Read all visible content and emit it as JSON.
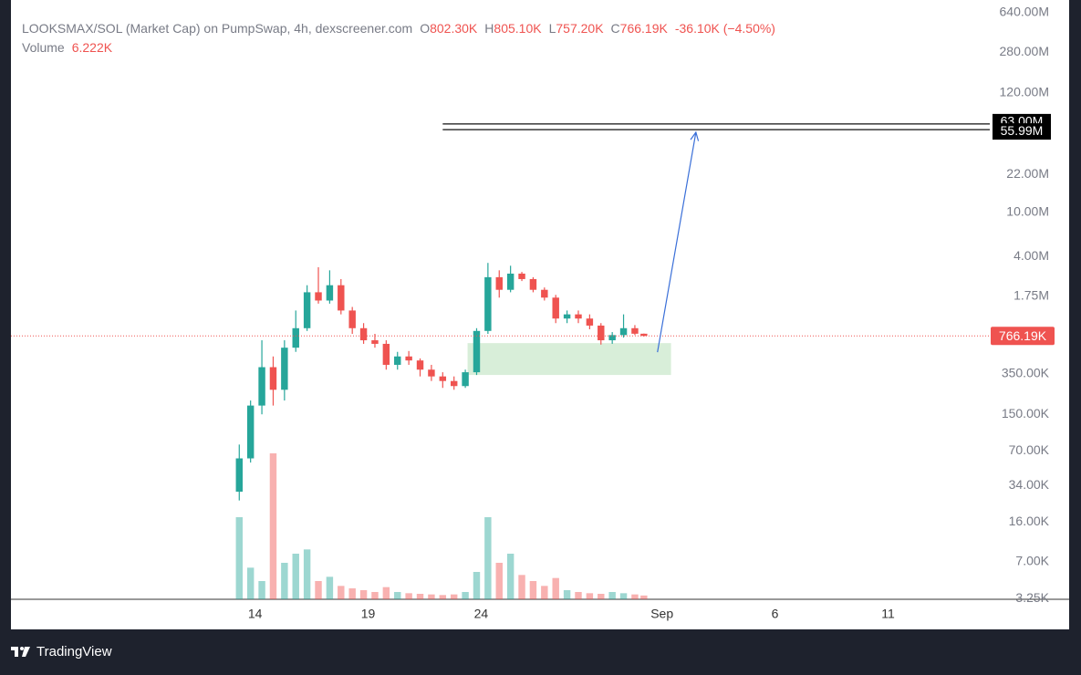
{
  "chart_data": {
    "type": "candlestick",
    "header": {
      "symbol": "LOOKSMAX/SOL (Market Cap) on PumpSwap, 4h, dexscreener.com",
      "o": "O",
      "open": "802.30K",
      "h": "H",
      "high": "805.10K",
      "l": "L",
      "low": "757.20K",
      "c": "C",
      "close": "766.19K",
      "change": "-36.10K (−4.50%)",
      "volume_name": "Volume",
      "volume": "6.222K"
    },
    "x": [
      13.3,
      13.8,
      14.3,
      14.8,
      15.3,
      15.8,
      16.3,
      16.8,
      17.3,
      17.8,
      18.3,
      18.8,
      19.3,
      19.8,
      20.3,
      20.8,
      21.3,
      21.8,
      22.3,
      22.8,
      23.3,
      23.8,
      24.3,
      24.8,
      25.3,
      25.8,
      26.3,
      26.8,
      27.3,
      27.8,
      28.3,
      28.8,
      29.3,
      29.8,
      30.3,
      30.8,
      31.2
    ],
    "open": [
      30000,
      60000,
      180000,
      400000,
      250000,
      600000,
      900000,
      1900000,
      1600000,
      2200000,
      1300000,
      900000,
      700000,
      650000,
      420000,
      500000,
      460000,
      380000,
      330000,
      300000,
      270000,
      360000,
      850000,
      2600000,
      2000000,
      2800000,
      2500000,
      2000000,
      1700000,
      1100000,
      1200000,
      1100000,
      950000,
      700000,
      780000,
      900000,
      802300
    ],
    "high": [
      80000,
      200000,
      700000,
      500000,
      700000,
      1300000,
      2200000,
      3200000,
      3000000,
      2500000,
      1400000,
      1000000,
      800000,
      700000,
      550000,
      560000,
      480000,
      420000,
      360000,
      330000,
      380000,
      900000,
      3500000,
      3000000,
      3300000,
      2900000,
      2600000,
      2100000,
      1800000,
      1300000,
      1300000,
      1200000,
      1000000,
      830000,
      1200000,
      960000,
      805100
    ],
    "low": [
      25000,
      55000,
      150000,
      180000,
      200000,
      550000,
      850000,
      1500000,
      1500000,
      1200000,
      800000,
      650000,
      600000,
      380000,
      380000,
      420000,
      330000,
      300000,
      260000,
      250000,
      260000,
      340000,
      800000,
      1700000,
      1900000,
      2400000,
      1900000,
      1600000,
      1000000,
      1000000,
      1000000,
      880000,
      640000,
      650000,
      740000,
      780000,
      757200
    ],
    "close": [
      60000,
      180000,
      400000,
      250000,
      600000,
      900000,
      1900000,
      1600000,
      2200000,
      1300000,
      900000,
      700000,
      650000,
      420000,
      500000,
      460000,
      380000,
      330000,
      300000,
      270000,
      360000,
      850000,
      2600000,
      2000000,
      2800000,
      2500000,
      2000000,
      1700000,
      1100000,
      1200000,
      1100000,
      950000,
      700000,
      780000,
      900000,
      802300,
      766190
    ],
    "volume": [
      135000,
      52000,
      30000,
      240000,
      60000,
      75000,
      82000,
      30000,
      37000,
      22000,
      18000,
      15000,
      12000,
      20000,
      12000,
      10000,
      9000,
      8000,
      7000,
      8000,
      12000,
      45000,
      135000,
      60000,
      75000,
      40000,
      30000,
      22000,
      35000,
      15000,
      12000,
      10000,
      9000,
      12000,
      10000,
      8000,
      6222
    ],
    "up_color": "#26a69a",
    "down_color": "#ef5350",
    "log_scale": true,
    "ylim": [
      3200,
      830000000
    ],
    "yticks": [
      {
        "value": 640000000,
        "label": "640.00M"
      },
      {
        "value": 280000000,
        "label": "280.00M"
      },
      {
        "value": 120000000,
        "label": "120.00M"
      },
      {
        "value": 22000000,
        "label": "22.00M"
      },
      {
        "value": 10000000,
        "label": "10.00M"
      },
      {
        "value": 4000000,
        "label": "4.00M"
      },
      {
        "value": 1750000,
        "label": "1.75M"
      },
      {
        "value": 350000,
        "label": "350.00K"
      },
      {
        "value": 150000,
        "label": "150.00K"
      },
      {
        "value": 70000,
        "label": "70.00K"
      },
      {
        "value": 34000,
        "label": "34.00K"
      },
      {
        "value": 16000,
        "label": "16.00K"
      },
      {
        "value": 7000,
        "label": "7.00K"
      },
      {
        "value": 3250,
        "label": "3.25K"
      }
    ],
    "xlim": [
      3.2,
      46.5
    ],
    "xticks": [
      14,
      19,
      24,
      {
        "value": 32,
        "label": "Sep"
      },
      {
        "value": 37,
        "label": "6"
      },
      {
        "value": 42,
        "label": "11"
      }
    ],
    "current_price": {
      "value": 766190,
      "label": "766.19K"
    },
    "levels": [
      {
        "value": 63000000,
        "label": "63.00M"
      },
      {
        "value": 55990000,
        "label": "55.99M"
      }
    ],
    "level_start_x": 22.3,
    "zone": {
      "x": [
        23.4,
        32.4
      ],
      "y": [
        340000,
        660000
      ],
      "color": "#d8eed9"
    },
    "arrow": {
      "x": [
        31.8,
        33.5
      ],
      "y": [
        546000,
        53000000
      ],
      "color": "#3a6fd8"
    },
    "brand": "TradingView"
  }
}
